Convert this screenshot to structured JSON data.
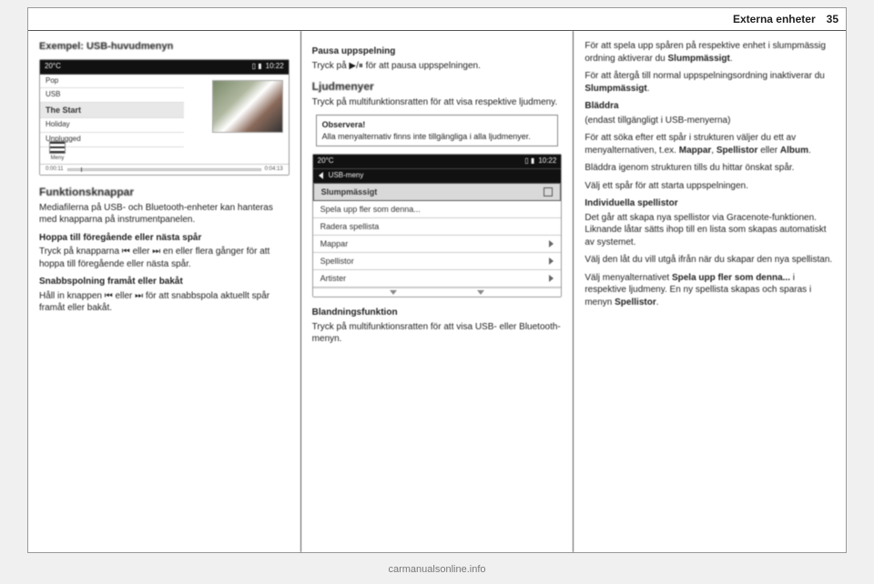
{
  "header": {
    "chapter": "Externa enheter",
    "page": "35"
  },
  "col1": {
    "example_heading": "Exempel: USB-huvudmenyn",
    "device": {
      "temp": "20°C",
      "time": "10:22",
      "rows": [
        "Pop",
        "USB",
        "The Start",
        "Holiday",
        "Unplugged"
      ],
      "selected_index": 2,
      "menu_label": "Meny",
      "progress_left": "0:00:11",
      "progress_right": "0:04:13",
      "cut_pct": 7
    },
    "funktionsknappar": "Funktionsknappar",
    "p1": "Mediafilerna på USB- och Bluetooth-enheter kan hanteras med knapparna på instrumentpanelen.",
    "h_skip": "Hoppa till föregående eller nästa spår",
    "p_skip": "Tryck på knapparna ⏮ eller ⏭ en eller flera gånger för att hoppa till föregående eller nästa spår.",
    "h_snabb": "Snabbspolning framåt eller bakåt",
    "p_snabb": "Håll in knappen ⏮ eller ⏭ för att snabbspola aktuellt spår framåt eller bakåt."
  },
  "col2": {
    "h_pause": "Pausa uppspelning",
    "p_pause": "Tryck på ▶/⏸ för att pausa uppspelningen.",
    "h_ljud": "Ljudmenyer",
    "p_ljud": "Tryck på multifunktionsratten för att visa respektive ljudmeny.",
    "note_title": "Observera!",
    "note_body": "Alla menyalternativ finns inte tillgängliga i alla ljudmenyer.",
    "device": {
      "temp": "20°C",
      "time": "10:22",
      "title": "USB-meny",
      "items": [
        {
          "label": "Slumpmässigt",
          "right": "chk",
          "sel": true
        },
        {
          "label": "Spela upp fler som denna...",
          "right": "",
          "sel": false
        },
        {
          "label": "Radera spellista",
          "right": "",
          "sel": false
        },
        {
          "label": "Mappar",
          "right": "chev",
          "sel": false
        },
        {
          "label": "Spellistor",
          "right": "chev",
          "sel": false
        },
        {
          "label": "Artister",
          "right": "chev",
          "sel": false
        }
      ]
    },
    "h_bland": "Blandningsfunktion",
    "p_bland": "Tryck på multifunktionsratten för att visa USB- eller Bluetooth-menyn."
  },
  "col3": {
    "p1a": "För att spela upp spåren på respektive enhet i slumpmässig ordning aktiverar du ",
    "p1b": "Slumpmässigt",
    "p1c": ".",
    "p2a": "För att återgå till normal uppspelningsordning inaktiverar du ",
    "p2b": "Slumpmässigt",
    "p2c": ".",
    "h_bladdra": "Bläddra",
    "sub_bladdra": "(endast tillgängligt i USB-menyerna)",
    "p3a": "För att söka efter ett spår i strukturen väljer du ett av menyalternativen, t.ex. ",
    "p3b": "Mappar",
    "p3c": ", ",
    "p3d": "Spellistor",
    "p3e": " eller ",
    "p3f": "Album",
    "p3g": ".",
    "p4": "Bläddra igenom strukturen tills du hittar önskat spår.",
    "p5": "Välj ett spår för att starta uppspelningen.",
    "h_ind": "Individuella spellistor",
    "p6": "Det går att skapa nya spellistor via Gracenote-funktionen. Liknande låtar sätts ihop till en lista som skapas automatiskt av systemet.",
    "p7": "Välj den låt du vill utgå ifrån när du skapar den nya spellistan.",
    "p8a": "Välj menyalternativet ",
    "p8b": "Spela upp fler som denna...",
    "p8c": " i respektive ljudmeny. En ny spellista skapas och sparas i menyn ",
    "p8d": "Spellistor",
    "p8e": "."
  },
  "watermark": "carmanualsonline.info"
}
